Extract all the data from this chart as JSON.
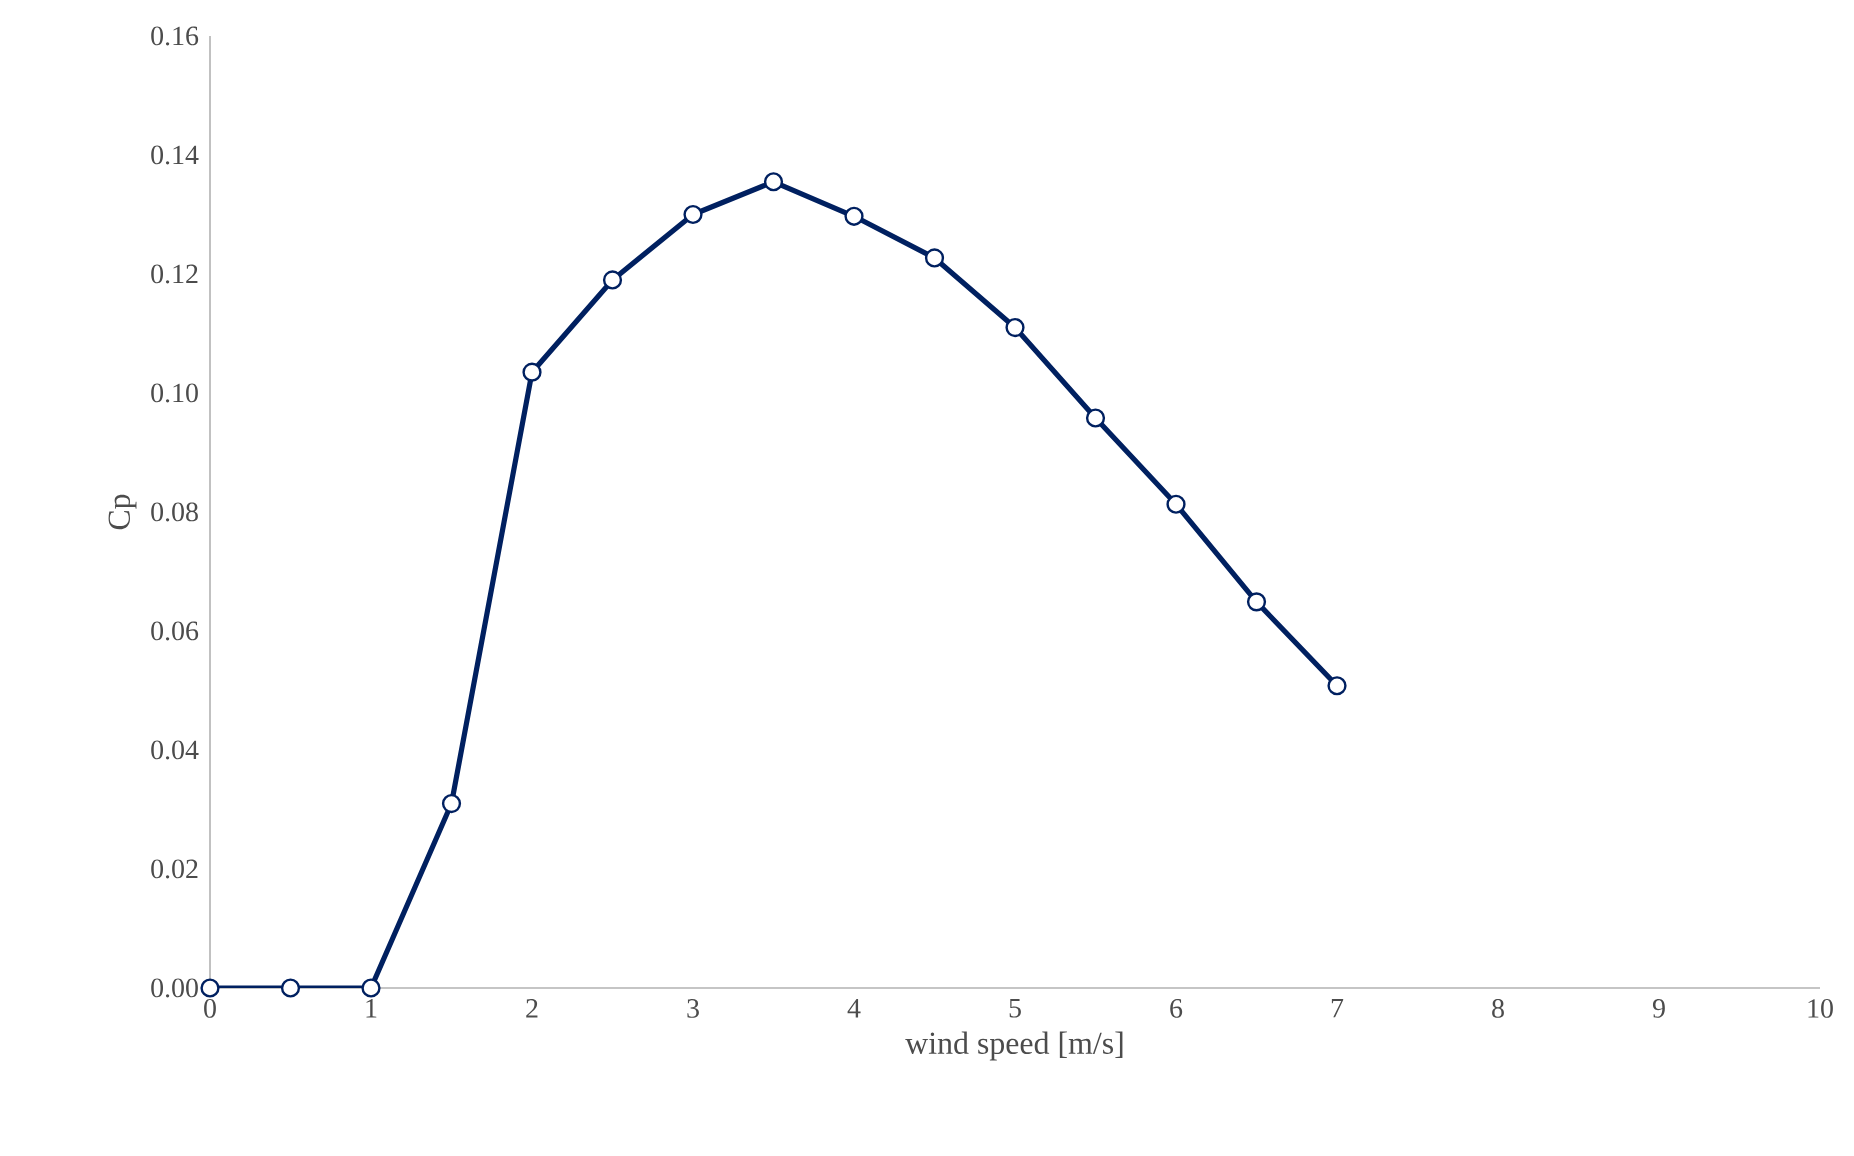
{
  "chart_data": {
    "type": "line",
    "xlabel": "wind speed [m/s]",
    "ylabel": "Cp",
    "xlim": [
      0,
      10
    ],
    "xticks": [
      0,
      1,
      2,
      3,
      4,
      5,
      6,
      7,
      8,
      9,
      10
    ],
    "ylim": [
      0,
      0.16
    ],
    "yticks": [
      {
        "value": 0,
        "label": "0.00"
      },
      {
        "value": 0.02,
        "label": "0.02"
      },
      {
        "value": 0.04,
        "label": "0.04"
      },
      {
        "value": 0.06,
        "label": "0.06"
      },
      {
        "value": 0.08,
        "label": "0.08"
      },
      {
        "value": 0.1,
        "label": "0.10"
      },
      {
        "value": 0.12,
        "label": "0.12"
      },
      {
        "value": 0.14,
        "label": "0.14"
      },
      {
        "value": 0.16,
        "label": "0.16"
      }
    ],
    "marker": "circle",
    "line_style": "solid",
    "series": [
      {
        "color": "#002060",
        "x": [
          0,
          0.5,
          1,
          1.5,
          2,
          2.5,
          3,
          3.5,
          4,
          4.5,
          5,
          5.5,
          6,
          6.5,
          7
        ],
        "values": [
          0,
          0,
          0,
          0.031,
          0.1035,
          0.119,
          0.13,
          0.1355,
          0.1297,
          0.1227,
          0.111,
          0.0958,
          0.0813,
          0.0649,
          0.0508
        ]
      }
    ]
  }
}
